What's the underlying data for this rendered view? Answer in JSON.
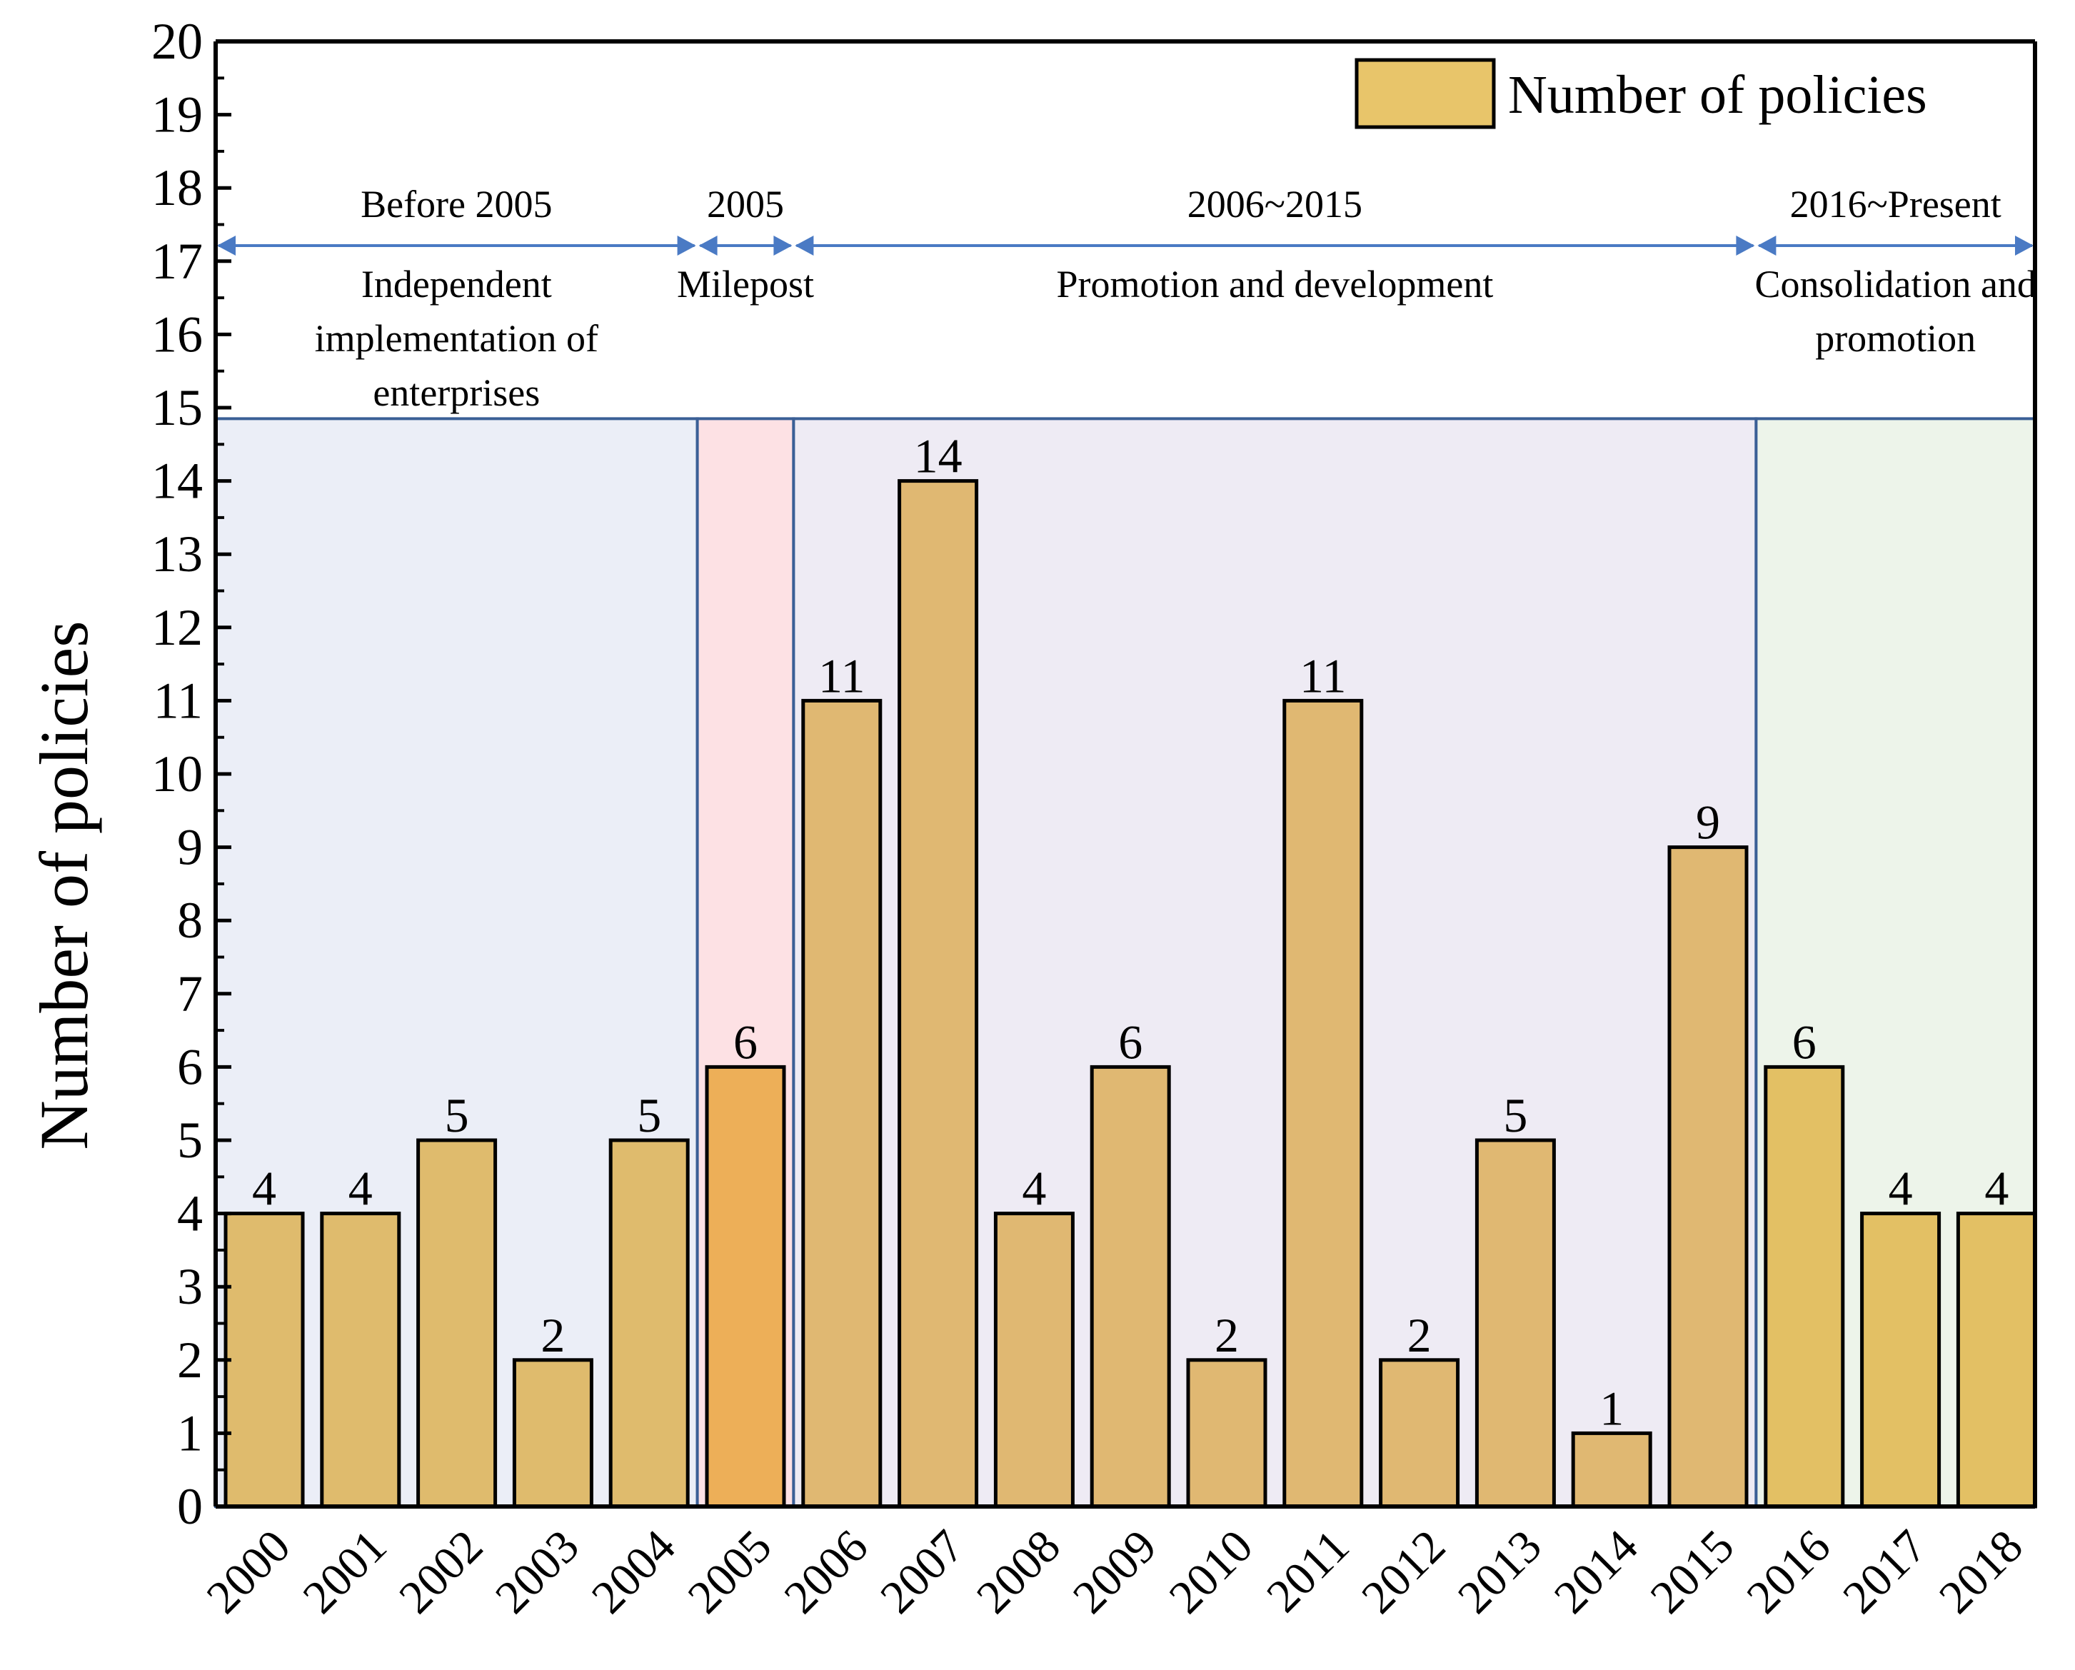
{
  "chart_data": {
    "type": "bar",
    "title": "",
    "xlabel": "",
    "ylabel": "Number of policies",
    "ylim": [
      0,
      20
    ],
    "yticks": [
      0,
      1,
      2,
      3,
      4,
      5,
      6,
      7,
      8,
      9,
      10,
      11,
      12,
      13,
      14,
      15,
      16,
      17,
      18,
      19,
      20
    ],
    "categories": [
      "2000",
      "2001",
      "2002",
      "2003",
      "2004",
      "2005",
      "2006",
      "2007",
      "2008",
      "2009",
      "2010",
      "2011",
      "2012",
      "2013",
      "2014",
      "2015",
      "2016",
      "2017",
      "2018"
    ],
    "series": [
      {
        "name": "Number of policies",
        "values": [
          4,
          4,
          5,
          2,
          5,
          6,
          11,
          14,
          4,
          6,
          2,
          11,
          2,
          5,
          1,
          9,
          6,
          4,
          4
        ]
      }
    ],
    "legend": {
      "label": "Number of policies",
      "position": "top-right"
    },
    "periods": [
      {
        "top": "Before 2005",
        "bottom": [
          "Independent",
          "implementation of",
          "enterprises"
        ],
        "from": "2000",
        "to": "2004",
        "shade": "#ebeef7"
      },
      {
        "top": "2005",
        "bottom": [
          "Milepost"
        ],
        "from": "2005",
        "to": "2005",
        "shade": "#fde1e4"
      },
      {
        "top": "2006~2015",
        "bottom": [
          "Promotion  and  development"
        ],
        "from": "2006",
        "to": "2015",
        "shade": "#eeebf4"
      },
      {
        "top": "2016~Present",
        "bottom": [
          "Consolidation  and",
          "promotion"
        ],
        "from": "2016",
        "to": "2018",
        "shade": "#edf4ea"
      }
    ],
    "bar_colors": [
      "#dfbb6d",
      "#dfbb6d",
      "#dfbb6d",
      "#dfbb6d",
      "#dfbb6d",
      "#edaf58",
      "#e0b872",
      "#e0b872",
      "#e0b872",
      "#e0b872",
      "#e0b872",
      "#e0b872",
      "#e0b872",
      "#e0b872",
      "#e0b872",
      "#e0b872",
      "#e3c064",
      "#e3c064",
      "#e3c064"
    ],
    "legend_color": "#e8c56a",
    "arrow_color": "#4a7ac4",
    "region_border_color": "#3a5f96"
  }
}
